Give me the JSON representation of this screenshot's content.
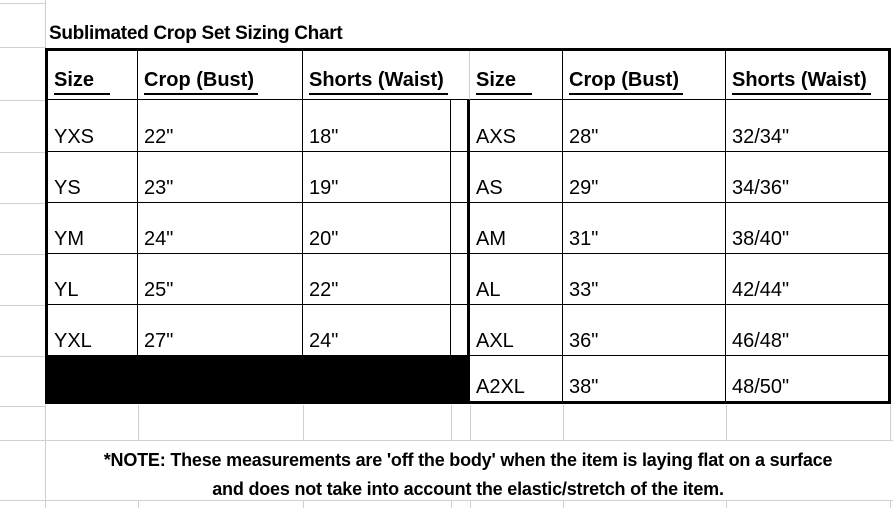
{
  "chart_data": {
    "type": "table",
    "title": "Sublimated Crop Set Sizing Chart",
    "columns": [
      "Size",
      "Crop (Bust)",
      "Shorts (Waist)",
      "Size",
      "Crop (Bust)",
      "Shorts (Waist)"
    ],
    "rows": [
      [
        "YXS",
        "22\"",
        "18\"",
        "AXS",
        "28\"",
        "32/34\""
      ],
      [
        "YS",
        "23\"",
        "19\"",
        "AS",
        "29\"",
        "34/36\""
      ],
      [
        "YM",
        "24\"",
        "20\"",
        "AM",
        "31\"",
        "38/40\""
      ],
      [
        "YL",
        "25\"",
        "22\"",
        "AL",
        "33\"",
        "42/44\""
      ],
      [
        "YXL",
        "27\"",
        "24\"",
        "AXL",
        "36\"",
        "46/48\""
      ],
      [
        "",
        "",
        "",
        "A2XL",
        "38\"",
        "48/50\""
      ]
    ],
    "blacked_out": {
      "row_index": 5,
      "side": "left-half"
    },
    "note_lines": [
      "*NOTE: These measurements are 'off the body' when the item is laying flat on a surface",
      "and does not take into account the elastic/stretch of the item."
    ],
    "layout_hints": {
      "grid_on": true,
      "header_underlined": true,
      "header_bold": true
    },
    "colors": {
      "border": "#000000",
      "fill_black": "#000000",
      "grid_faint": "#d0d0d0",
      "background": "#ffffff",
      "text": "#000000"
    }
  }
}
